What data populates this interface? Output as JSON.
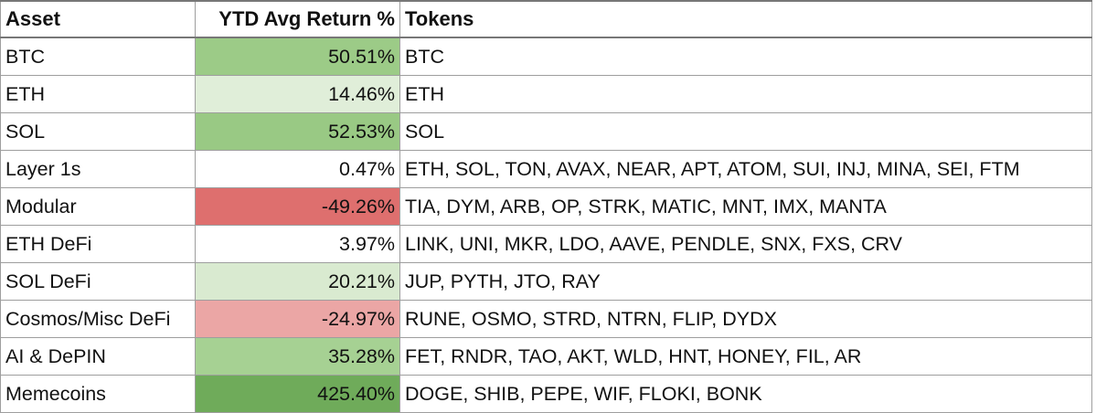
{
  "table": {
    "headers": [
      "Asset",
      "YTD Avg Return %",
      "Tokens"
    ],
    "rows": [
      {
        "asset": "BTC",
        "return": "50.51%",
        "tokens": "BTC",
        "bg": "#9ccb87"
      },
      {
        "asset": "ETH",
        "return": "14.46%",
        "tokens": "ETH",
        "bg": "#e0eed9"
      },
      {
        "asset": "SOL",
        "return": "52.53%",
        "tokens": "SOL",
        "bg": "#99c984"
      },
      {
        "asset": "Layer 1s",
        "return": "0.47%",
        "tokens": "ETH, SOL, TON, AVAX, NEAR, APT, ATOM, SUI, INJ, MINA, SEI, FTM",
        "bg": "#ffffff"
      },
      {
        "asset": "Modular",
        "return": "-49.26%",
        "tokens": "TIA, DYM, ARB, OP, STRK, MATIC, MNT, IMX, MANTA",
        "bg": "#de6f6e"
      },
      {
        "asset": "ETH DeFi",
        "return": "3.97%",
        "tokens": "LINK, UNI, MKR, LDO, AAVE, PENDLE, SNX, FXS, CRV",
        "bg": "#ffffff"
      },
      {
        "asset": "SOL DeFi",
        "return": "20.21%",
        "tokens": "JUP, PYTH, JTO, RAY",
        "bg": "#d9ead0"
      },
      {
        "asset": "Cosmos/Misc DeFi",
        "return": "-24.97%",
        "tokens": "RUNE, OSMO, STRD, NTRN, FLIP, DYDX",
        "bg": "#eba6a5"
      },
      {
        "asset": "AI & DePIN",
        "return": "35.28%",
        "tokens": "FET, RNDR, TAO, AKT, WLD, HNT, HONEY, FIL, AR",
        "bg": "#a6d193"
      },
      {
        "asset": "Memecoins",
        "return": "425.40%",
        "tokens": "DOGE, SHIB, PEPE, WIF, FLOKI, BONK",
        "bg": "#6fab5a"
      }
    ]
  }
}
